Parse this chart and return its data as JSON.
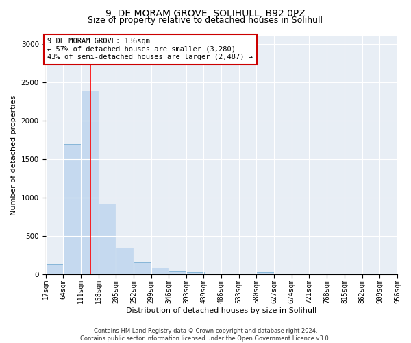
{
  "title": "9, DE MORAM GROVE, SOLIHULL, B92 0PZ",
  "subtitle": "Size of property relative to detached houses in Solihull",
  "xlabel": "Distribution of detached houses by size in Solihull",
  "ylabel": "Number of detached properties",
  "footer_line1": "Contains HM Land Registry data © Crown copyright and database right 2024.",
  "footer_line2": "Contains public sector information licensed under the Open Government Licence v3.0.",
  "bar_color": "#c5d9ef",
  "bar_edge_color": "#7bafd4",
  "red_line_x": 136,
  "annotation_title": "9 DE MORAM GROVE: 136sqm",
  "annotation_line2": "← 57% of detached houses are smaller (3,280)",
  "annotation_line3": "43% of semi-detached houses are larger (2,487) →",
  "annotation_box_color": "#ffffff",
  "annotation_box_edge": "#cc0000",
  "bin_edges": [
    17,
    64,
    111,
    158,
    205,
    252,
    299,
    346,
    393,
    439,
    486,
    533,
    580,
    627,
    674,
    721,
    768,
    815,
    862,
    909,
    956
  ],
  "bin_labels": [
    "17sqm",
    "64sqm",
    "111sqm",
    "158sqm",
    "205sqm",
    "252sqm",
    "299sqm",
    "346sqm",
    "393sqm",
    "439sqm",
    "486sqm",
    "533sqm",
    "580sqm",
    "627sqm",
    "674sqm",
    "721sqm",
    "768sqm",
    "815sqm",
    "862sqm",
    "909sqm",
    "956sqm"
  ],
  "bar_heights": [
    140,
    1700,
    2390,
    920,
    350,
    160,
    90,
    50,
    30,
    15,
    10,
    5,
    30,
    5,
    5,
    5,
    5,
    5,
    5,
    5
  ],
  "ylim": [
    0,
    3100
  ],
  "xlim": [
    17,
    956
  ],
  "yticks": [
    0,
    500,
    1000,
    1500,
    2000,
    2500,
    3000
  ],
  "background_color": "#e8eef5",
  "grid_color": "#ffffff",
  "title_fontsize": 10,
  "subtitle_fontsize": 9,
  "ylabel_fontsize": 8,
  "xlabel_fontsize": 8,
  "tick_fontsize": 7,
  "annot_fontsize": 7.5,
  "footer_fontsize": 6
}
